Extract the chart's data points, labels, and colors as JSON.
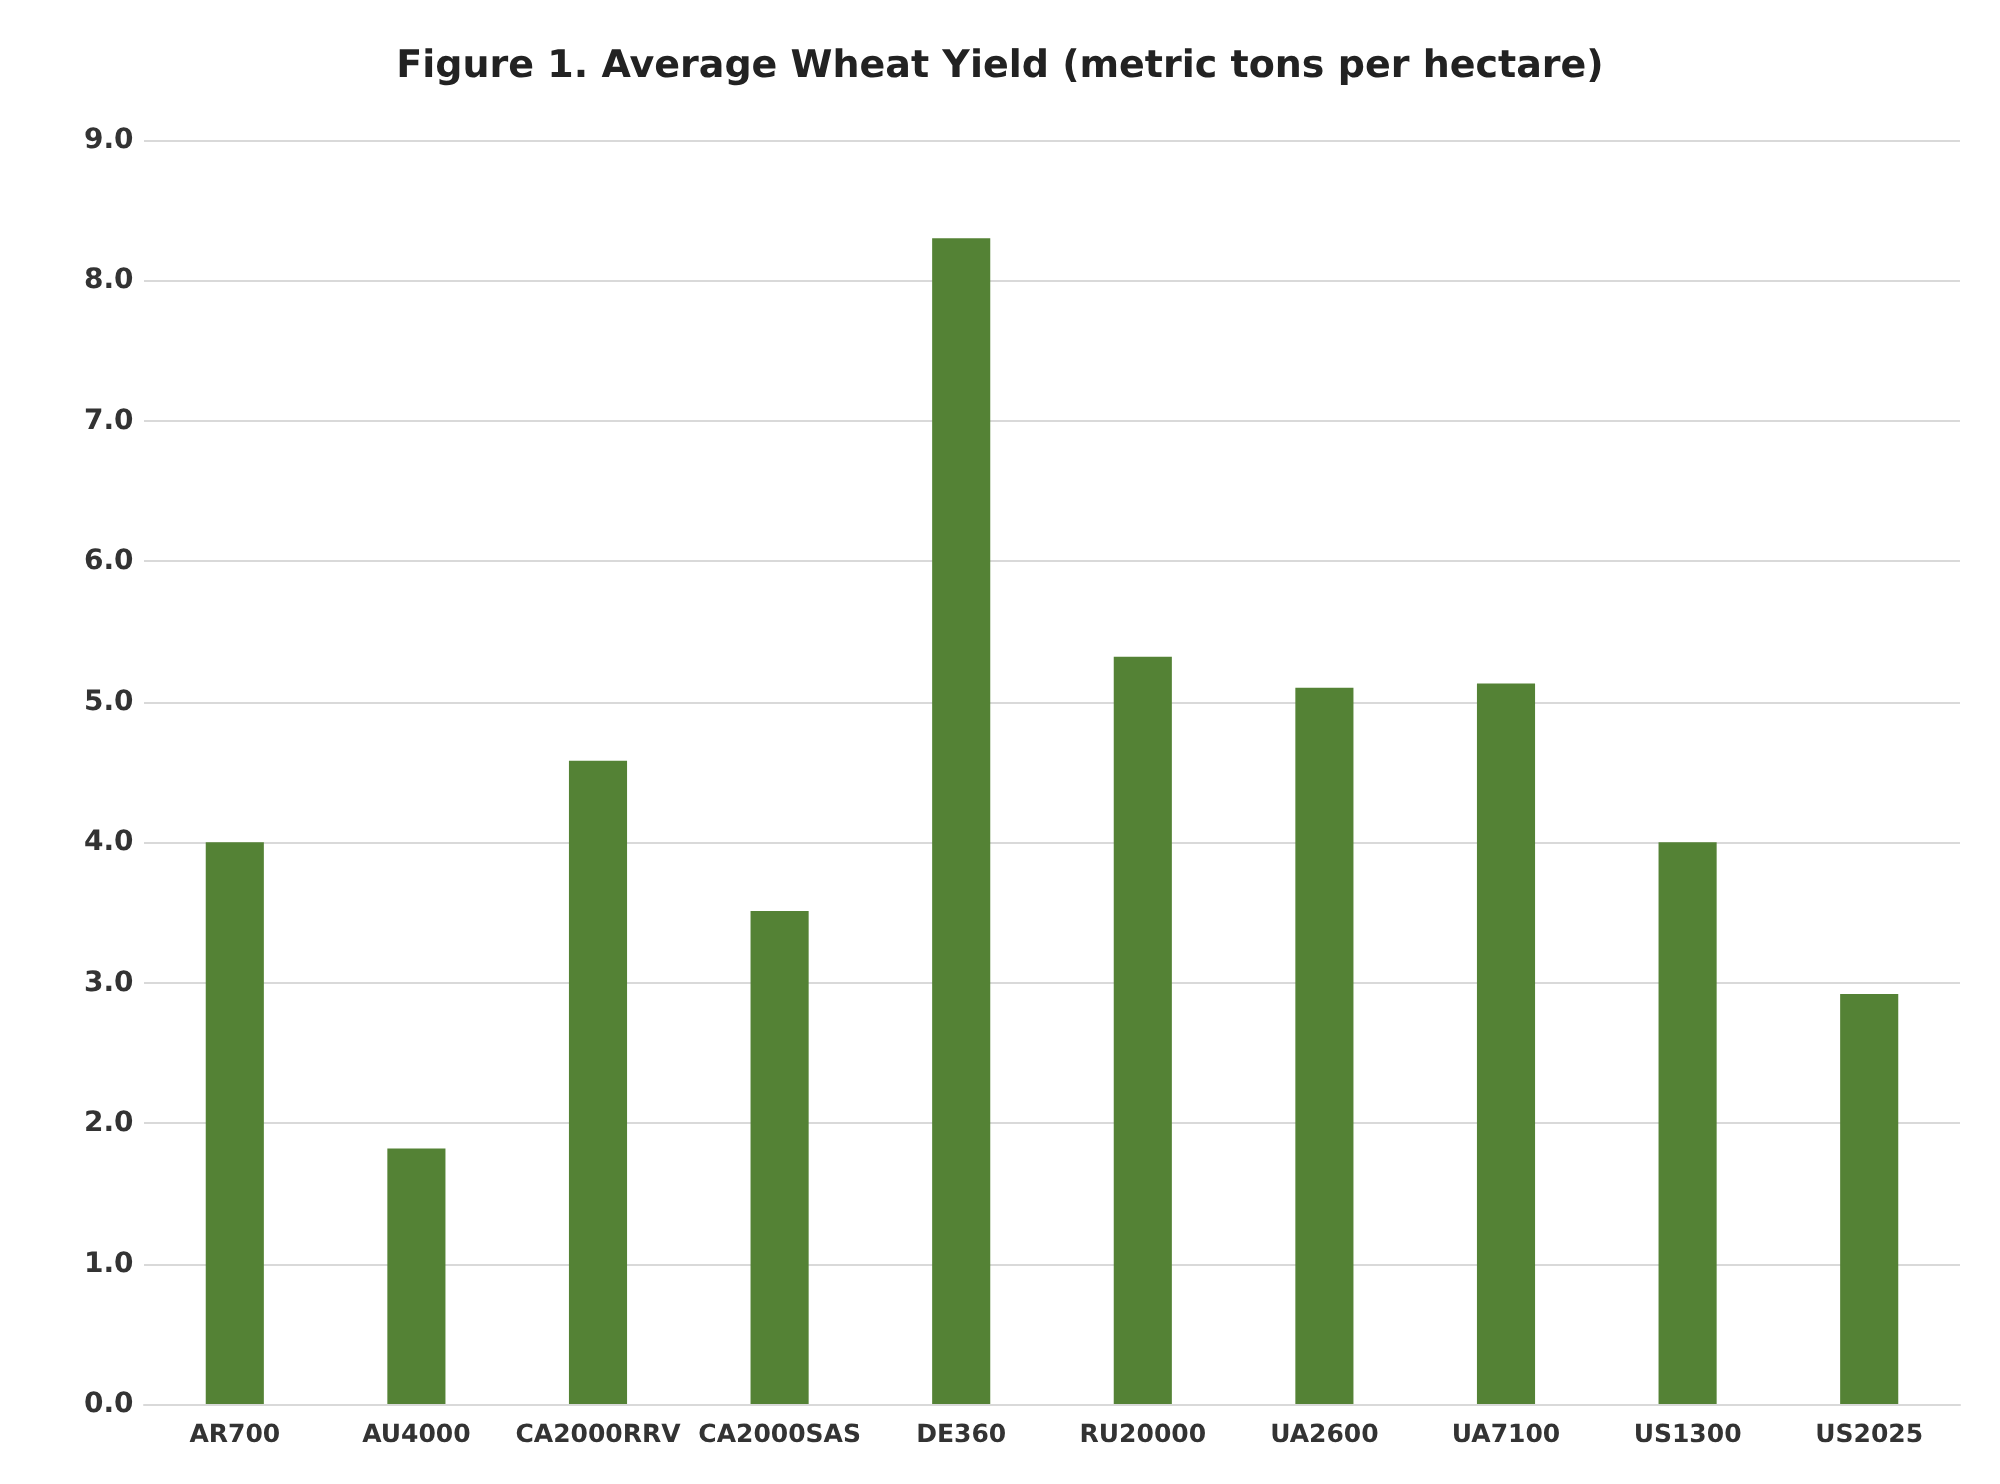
{
  "chart_data": {
    "type": "bar",
    "title": "Figure 1. Average Wheat Yield (metric tons per hectare)",
    "categories": [
      "AR700",
      "AU4000",
      "CA2000RRV",
      "CA2000SAS",
      "DE360",
      "RU20000",
      "UA2600",
      "UA7100",
      "US1300",
      "US2025"
    ],
    "values": [
      4.0,
      1.82,
      4.58,
      3.51,
      8.3,
      5.32,
      5.1,
      5.13,
      4.0,
      2.92
    ],
    "color": "#548235",
    "ylim": [
      0,
      9
    ],
    "yticks": [
      {
        "value": 0,
        "label": "0.0"
      },
      {
        "value": 1,
        "label": "1.0"
      },
      {
        "value": 2,
        "label": "2.0"
      },
      {
        "value": 3,
        "label": "3.0"
      },
      {
        "value": 4,
        "label": "4.0"
      },
      {
        "value": 5,
        "label": "5.0"
      },
      {
        "value": 6,
        "label": "6.0"
      },
      {
        "value": 7,
        "label": "7.0"
      },
      {
        "value": 8,
        "label": "8.0"
      },
      {
        "value": 9,
        "label": "9.0"
      }
    ],
    "grid": "y"
  }
}
